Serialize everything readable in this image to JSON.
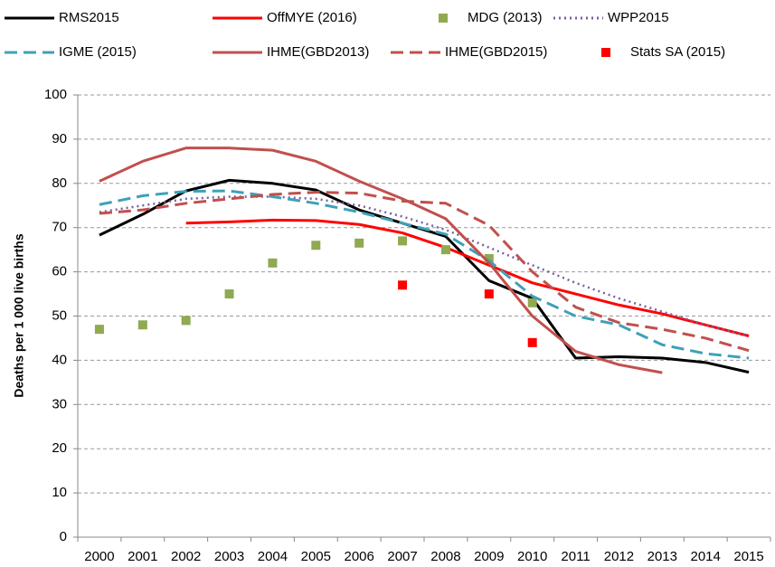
{
  "chart_data": {
    "type": "line",
    "y_label": "Deaths per 1 000 live births",
    "categories": [
      "2000",
      "2001",
      "2002",
      "2003",
      "2004",
      "2005",
      "2006",
      "2007",
      "2008",
      "2009",
      "2010",
      "2011",
      "2012",
      "2013",
      "2014",
      "2015"
    ],
    "ylim": [
      0,
      100
    ],
    "yticks": [
      0,
      10,
      20,
      30,
      40,
      50,
      60,
      70,
      80,
      90,
      100
    ],
    "grid": true,
    "series": [
      {
        "name": "RMS2015",
        "color": "#000000",
        "style": "line",
        "dash": "solid",
        "values": [
          68.3,
          73,
          78.3,
          80.7,
          80,
          78.5,
          74,
          71,
          68,
          58,
          54,
          40.5,
          40.8,
          40.5,
          39.5,
          37.3
        ]
      },
      {
        "name": "OffMYE (2016)",
        "color": "#ff0000",
        "style": "line",
        "dash": "solid",
        "values": [
          null,
          null,
          71,
          71.3,
          71.7,
          71.6,
          70.7,
          68.8,
          65.5,
          61.5,
          57.5,
          55,
          52.5,
          50.5,
          48,
          45.5
        ]
      },
      {
        "name": "MDG (2013)",
        "color": "#8faa4f",
        "style": "marker",
        "values": [
          47,
          48,
          49,
          55,
          62,
          66,
          66.5,
          67,
          65,
          63,
          53,
          null,
          null,
          null,
          null,
          null
        ]
      },
      {
        "name": "WPP2015",
        "color": "#7a5fa0",
        "style": "line",
        "dash": "dotted",
        "values": [
          73.5,
          75,
          76.5,
          77,
          77,
          76.5,
          75,
          72.5,
          69.5,
          65.5,
          61.5,
          57.5,
          54,
          51,
          48,
          45.5
        ]
      },
      {
        "name": "IGME (2015)",
        "color": "#3fa0b8",
        "style": "line",
        "dash": "dashed",
        "values": [
          75.2,
          77.2,
          78.2,
          78.3,
          77,
          75.5,
          73.5,
          71,
          68.5,
          62.5,
          54.5,
          50,
          48,
          43.5,
          41.5,
          40.5
        ]
      },
      {
        "name": "IHME(GBD2013)",
        "color": "#c0504d",
        "style": "line",
        "dash": "solid",
        "values": [
          80.5,
          85,
          88,
          88,
          87.5,
          85,
          80.5,
          76.5,
          72,
          62,
          50,
          42,
          39,
          37.2,
          null,
          null
        ]
      },
      {
        "name": "IHME(GBD2015)",
        "color": "#c0504d",
        "style": "line",
        "dash": "dashed",
        "values": [
          73.2,
          74,
          75.5,
          76.5,
          77.5,
          78,
          77.8,
          76,
          75.5,
          70.5,
          60,
          52,
          48.5,
          47,
          45,
          42.2
        ]
      },
      {
        "name": "Stats SA (2015)",
        "color": "#ff0000",
        "style": "marker",
        "values": [
          null,
          null,
          null,
          null,
          null,
          null,
          null,
          57,
          null,
          55,
          44,
          null,
          null,
          null,
          null,
          null
        ]
      }
    ]
  }
}
